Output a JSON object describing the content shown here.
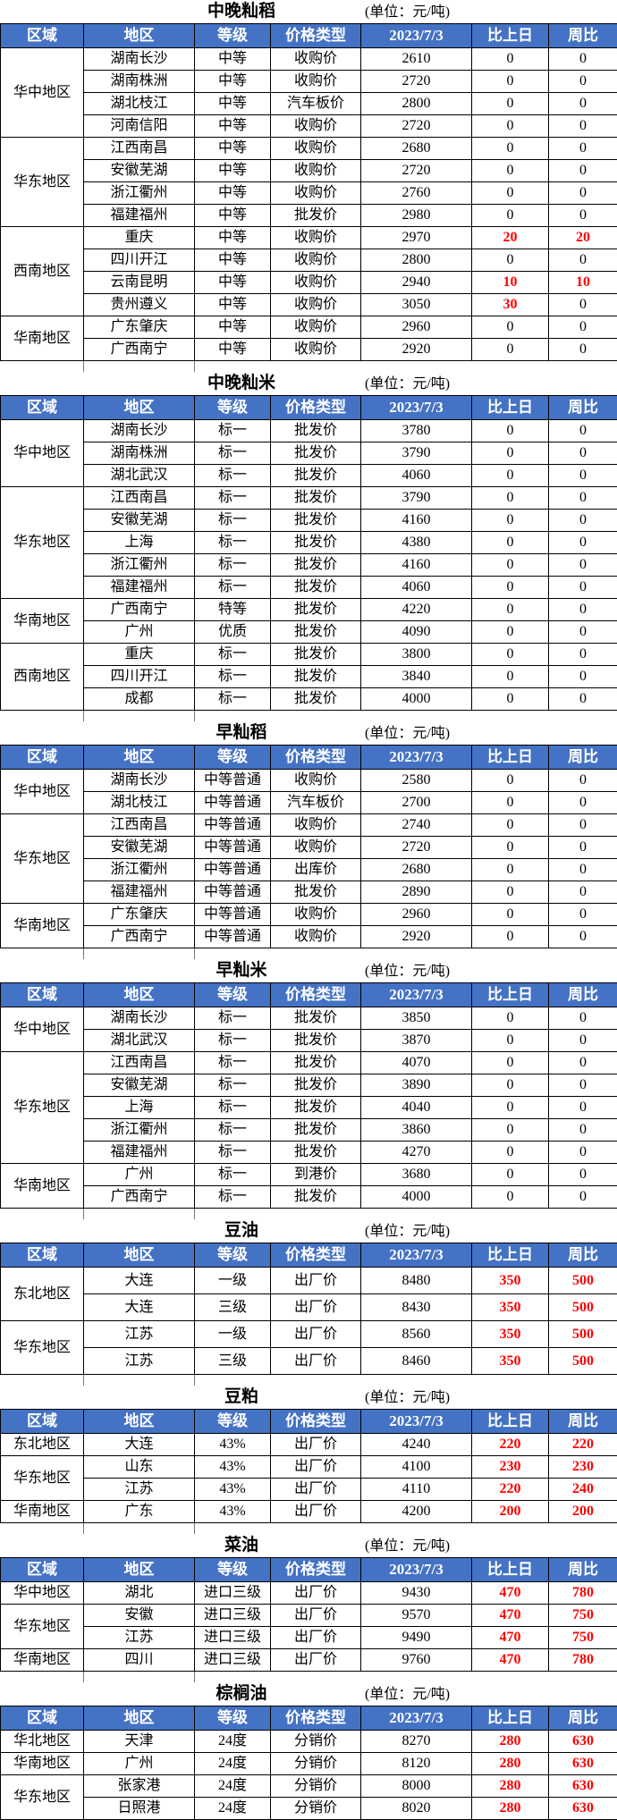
{
  "unit_label": "(单位：元/吨)",
  "columns": [
    "区域",
    "地区",
    "等级",
    "价格类型",
    "2023/7/3",
    "比上日",
    "周比"
  ],
  "colors": {
    "header_bg": "#4472C4",
    "header_text": "#FFFFFF",
    "change_up": "#FF0000",
    "border": "#000000"
  },
  "tables": [
    {
      "title": "中晚籼稻",
      "groups": [
        {
          "region": "华中地区",
          "rows": [
            {
              "area": "湖南长沙",
              "grade": "中等",
              "price_type": "收购价",
              "price": 2610,
              "day_change": 0,
              "week_change": 0
            },
            {
              "area": "湖南株洲",
              "grade": "中等",
              "price_type": "收购价",
              "price": 2720,
              "day_change": 0,
              "week_change": 0
            },
            {
              "area": "湖北枝江",
              "grade": "中等",
              "price_type": "汽车板价",
              "price": 2800,
              "day_change": 0,
              "week_change": 0
            },
            {
              "area": "河南信阳",
              "grade": "中等",
              "price_type": "收购价",
              "price": 2720,
              "day_change": 0,
              "week_change": 0
            }
          ]
        },
        {
          "region": "华东地区",
          "rows": [
            {
              "area": "江西南昌",
              "grade": "中等",
              "price_type": "收购价",
              "price": 2680,
              "day_change": 0,
              "week_change": 0
            },
            {
              "area": "安徽芜湖",
              "grade": "中等",
              "price_type": "收购价",
              "price": 2720,
              "day_change": 0,
              "week_change": 0
            },
            {
              "area": "浙江衢州",
              "grade": "中等",
              "price_type": "收购价",
              "price": 2760,
              "day_change": 0,
              "week_change": 0
            },
            {
              "area": "福建福州",
              "grade": "中等",
              "price_type": "批发价",
              "price": 2980,
              "day_change": 0,
              "week_change": 0
            }
          ]
        },
        {
          "region": "西南地区",
          "rows": [
            {
              "area": "重庆",
              "grade": "中等",
              "price_type": "收购价",
              "price": 2970,
              "day_change": 20,
              "week_change": 20
            },
            {
              "area": "四川开江",
              "grade": "中等",
              "price_type": "收购价",
              "price": 2800,
              "day_change": 0,
              "week_change": 0
            },
            {
              "area": "云南昆明",
              "grade": "中等",
              "price_type": "收购价",
              "price": 2940,
              "day_change": 10,
              "week_change": 10
            },
            {
              "area": "贵州遵义",
              "grade": "中等",
              "price_type": "收购价",
              "price": 3050,
              "day_change": 30,
              "week_change": 0
            }
          ]
        },
        {
          "region": "华南地区",
          "rows": [
            {
              "area": "广东肇庆",
              "grade": "中等",
              "price_type": "收购价",
              "price": 2960,
              "day_change": 0,
              "week_change": 0
            },
            {
              "area": "广西南宁",
              "grade": "中等",
              "price_type": "收购价",
              "price": 2920,
              "day_change": 0,
              "week_change": 0
            }
          ]
        }
      ]
    },
    {
      "title": "中晚籼米",
      "groups": [
        {
          "region": "华中地区",
          "rows": [
            {
              "area": "湖南长沙",
              "grade": "标一",
              "price_type": "批发价",
              "price": 3780,
              "day_change": 0,
              "week_change": 0
            },
            {
              "area": "湖南株洲",
              "grade": "标一",
              "price_type": "批发价",
              "price": 3790,
              "day_change": 0,
              "week_change": 0
            },
            {
              "area": "湖北武汉",
              "grade": "标一",
              "price_type": "批发价",
              "price": 4060,
              "day_change": 0,
              "week_change": 0
            }
          ]
        },
        {
          "region": "华东地区",
          "rows": [
            {
              "area": "江西南昌",
              "grade": "标一",
              "price_type": "批发价",
              "price": 3790,
              "day_change": 0,
              "week_change": 0
            },
            {
              "area": "安徽芜湖",
              "grade": "标一",
              "price_type": "批发价",
              "price": 4160,
              "day_change": 0,
              "week_change": 0
            },
            {
              "area": "上海",
              "grade": "标一",
              "price_type": "批发价",
              "price": 4380,
              "day_change": 0,
              "week_change": 0
            },
            {
              "area": "浙江衢州",
              "grade": "标一",
              "price_type": "批发价",
              "price": 4160,
              "day_change": 0,
              "week_change": 0
            },
            {
              "area": "福建福州",
              "grade": "标一",
              "price_type": "批发价",
              "price": 4060,
              "day_change": 0,
              "week_change": 0
            }
          ]
        },
        {
          "region": "华南地区",
          "rows": [
            {
              "area": "广西南宁",
              "grade": "特等",
              "price_type": "批发价",
              "price": 4220,
              "day_change": 0,
              "week_change": 0
            },
            {
              "area": "广州",
              "grade": "优质",
              "price_type": "批发价",
              "price": 4090,
              "day_change": 0,
              "week_change": 0
            }
          ]
        },
        {
          "region": "西南地区",
          "rows": [
            {
              "area": "重庆",
              "grade": "标一",
              "price_type": "批发价",
              "price": 3800,
              "day_change": 0,
              "week_change": 0
            },
            {
              "area": "四川开江",
              "grade": "标一",
              "price_type": "批发价",
              "price": 3840,
              "day_change": 0,
              "week_change": 0
            },
            {
              "area": "成都",
              "grade": "标一",
              "price_type": "批发价",
              "price": 4000,
              "day_change": 0,
              "week_change": 0
            }
          ]
        }
      ]
    },
    {
      "title": "早籼稻",
      "groups": [
        {
          "region": "华中地区",
          "rows": [
            {
              "area": "湖南长沙",
              "grade": "中等普通",
              "price_type": "收购价",
              "price": 2580,
              "day_change": 0,
              "week_change": 0
            },
            {
              "area": "湖北枝江",
              "grade": "中等普通",
              "price_type": "汽车板价",
              "price": 2700,
              "day_change": 0,
              "week_change": 0
            }
          ]
        },
        {
          "region": "华东地区",
          "rows": [
            {
              "area": "江西南昌",
              "grade": "中等普通",
              "price_type": "收购价",
              "price": 2740,
              "day_change": 0,
              "week_change": 0
            },
            {
              "area": "安徽芜湖",
              "grade": "中等普通",
              "price_type": "收购价",
              "price": 2720,
              "day_change": 0,
              "week_change": 0
            },
            {
              "area": "浙江衢州",
              "grade": "中等普通",
              "price_type": "出库价",
              "price": 2680,
              "day_change": 0,
              "week_change": 0
            },
            {
              "area": "福建福州",
              "grade": "中等普通",
              "price_type": "批发价",
              "price": 2890,
              "day_change": 0,
              "week_change": 0
            }
          ]
        },
        {
          "region": "华南地区",
          "rows": [
            {
              "area": "广东肇庆",
              "grade": "中等普通",
              "price_type": "收购价",
              "price": 2960,
              "day_change": 0,
              "week_change": 0
            },
            {
              "area": "广西南宁",
              "grade": "中等普通",
              "price_type": "收购价",
              "price": 2920,
              "day_change": 0,
              "week_change": 0
            }
          ]
        }
      ]
    },
    {
      "title": "早籼米",
      "groups": [
        {
          "region": "华中地区",
          "rows": [
            {
              "area": "湖南长沙",
              "grade": "标一",
              "price_type": "批发价",
              "price": 3850,
              "day_change": 0,
              "week_change": 0
            },
            {
              "area": "湖北武汉",
              "grade": "标一",
              "price_type": "批发价",
              "price": 3870,
              "day_change": 0,
              "week_change": 0
            }
          ]
        },
        {
          "region": "华东地区",
          "rows": [
            {
              "area": "江西南昌",
              "grade": "标一",
              "price_type": "批发价",
              "price": 4070,
              "day_change": 0,
              "week_change": 0
            },
            {
              "area": "安徽芜湖",
              "grade": "标一",
              "price_type": "批发价",
              "price": 3890,
              "day_change": 0,
              "week_change": 0
            },
            {
              "area": "上海",
              "grade": "标一",
              "price_type": "批发价",
              "price": 4040,
              "day_change": 0,
              "week_change": 0
            },
            {
              "area": "浙江衢州",
              "grade": "标一",
              "price_type": "批发价",
              "price": 3860,
              "day_change": 0,
              "week_change": 0
            },
            {
              "area": "福建福州",
              "grade": "标一",
              "price_type": "批发价",
              "price": 4270,
              "day_change": 0,
              "week_change": 0
            }
          ]
        },
        {
          "region": "华南地区",
          "rows": [
            {
              "area": "广州",
              "grade": "标一",
              "price_type": "到港价",
              "price": 3680,
              "day_change": 0,
              "week_change": 0
            },
            {
              "area": "广西南宁",
              "grade": "标一",
              "price_type": "批发价",
              "price": 4000,
              "day_change": 0,
              "week_change": 0
            }
          ]
        }
      ]
    },
    {
      "title": "豆油",
      "groups": [
        {
          "region": "东北地区",
          "rows": [
            {
              "area": "大连",
              "grade": "一级",
              "price_type": "出厂价",
              "price": 8480,
              "day_change": 350,
              "week_change": 500
            },
            {
              "area": "大连",
              "grade": "三级",
              "price_type": "出厂价",
              "price": 8430,
              "day_change": 350,
              "week_change": 500
            }
          ]
        },
        {
          "region": "华东地区",
          "rows": [
            {
              "area": "江苏",
              "grade": "一级",
              "price_type": "出厂价",
              "price": 8560,
              "day_change": 350,
              "week_change": 500
            },
            {
              "area": "江苏",
              "grade": "三级",
              "price_type": "出厂价",
              "price": 8460,
              "day_change": 350,
              "week_change": 500
            }
          ]
        }
      ]
    },
    {
      "title": "豆粕",
      "groups": [
        {
          "region": "东北地区",
          "rows": [
            {
              "area": "大连",
              "grade": "43%",
              "price_type": "出厂价",
              "price": 4240,
              "day_change": 220,
              "week_change": 220
            }
          ]
        },
        {
          "region": "华东地区",
          "rows": [
            {
              "area": "山东",
              "grade": "43%",
              "price_type": "出厂价",
              "price": 4100,
              "day_change": 230,
              "week_change": 230
            },
            {
              "area": "江苏",
              "grade": "43%",
              "price_type": "出厂价",
              "price": 4110,
              "day_change": 220,
              "week_change": 240
            }
          ]
        },
        {
          "region": "华南地区",
          "rows": [
            {
              "area": "广东",
              "grade": "43%",
              "price_type": "出厂价",
              "price": 4200,
              "day_change": 200,
              "week_change": 200
            }
          ]
        }
      ]
    },
    {
      "title": "菜油",
      "groups": [
        {
          "region": "华中地区",
          "rows": [
            {
              "area": "湖北",
              "grade": "进口三级",
              "price_type": "出厂价",
              "price": 9430,
              "day_change": 470,
              "week_change": 780
            }
          ]
        },
        {
          "region": "华东地区",
          "rows": [
            {
              "area": "安徽",
              "grade": "进口三级",
              "price_type": "出厂价",
              "price": 9570,
              "day_change": 470,
              "week_change": 750
            },
            {
              "area": "江苏",
              "grade": "进口三级",
              "price_type": "出厂价",
              "price": 9490,
              "day_change": 470,
              "week_change": 750
            }
          ]
        },
        {
          "region": "华南地区",
          "rows": [
            {
              "area": "四川",
              "grade": "进口三级",
              "price_type": "出厂价",
              "price": 9760,
              "day_change": 470,
              "week_change": 780
            }
          ]
        }
      ]
    },
    {
      "title": "棕榈油",
      "groups": [
        {
          "region": "华北地区",
          "rows": [
            {
              "area": "天津",
              "grade": "24度",
              "price_type": "分销价",
              "price": 8270,
              "day_change": 280,
              "week_change": 630
            }
          ]
        },
        {
          "region": "华南地区",
          "rows": [
            {
              "area": "广州",
              "grade": "24度",
              "price_type": "分销价",
              "price": 8120,
              "day_change": 280,
              "week_change": 630
            }
          ]
        },
        {
          "region": "华东地区",
          "rows": [
            {
              "area": "张家港",
              "grade": "24度",
              "price_type": "分销价",
              "price": 8000,
              "day_change": 280,
              "week_change": 630
            },
            {
              "area": "日照港",
              "grade": "24度",
              "price_type": "分销价",
              "price": 8020,
              "day_change": 280,
              "week_change": 630
            }
          ]
        }
      ]
    }
  ]
}
